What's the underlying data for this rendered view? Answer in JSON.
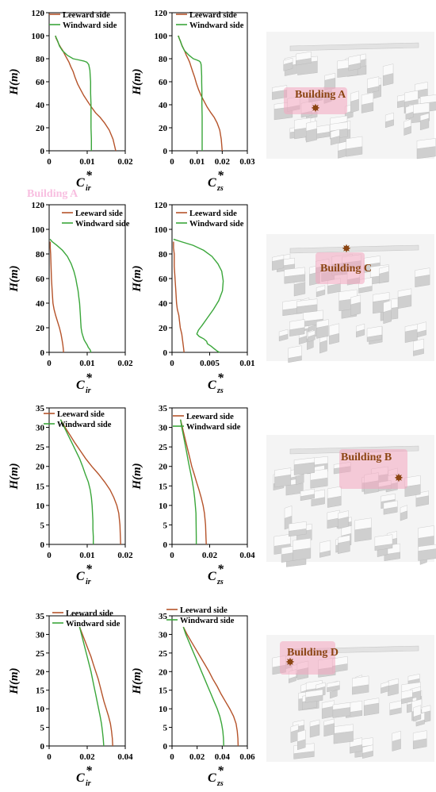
{
  "colors": {
    "leeward": "#b5532a",
    "windward": "#3aa63a",
    "star": "#8b4513",
    "building_label": "#8b4513",
    "highlight": "#f4a6c0"
  },
  "legend": {
    "leeward": "Leeward  side",
    "windward": "Windward  side"
  },
  "chart_data": [
    {
      "type": "line",
      "row": 0,
      "col": 0,
      "ylabel": "H(m)",
      "xlabel": "C",
      "xlabel_sub": "ir",
      "ylim": [
        0,
        120
      ],
      "yticks": [
        0,
        20,
        40,
        60,
        80,
        100,
        120
      ],
      "xlim": [
        0,
        0.02
      ],
      "xticks": [
        "0",
        "0.01",
        "0.02"
      ],
      "xtickvals": [
        0,
        0.01,
        0.02
      ],
      "series": [
        {
          "name": "Leeward  side",
          "x": [
            0.0017,
            0.0018,
            0.0021,
            0.0025,
            0.003,
            0.0036,
            0.0042,
            0.0047,
            0.0052,
            0.0057,
            0.0063,
            0.0068,
            0.0075,
            0.0083,
            0.0091,
            0.0101,
            0.0111,
            0.0122,
            0.0134,
            0.0146,
            0.0158,
            0.0168,
            0.0175
          ],
          "y": [
            100,
            98,
            96,
            93,
            90,
            87,
            83,
            80,
            77,
            73,
            69,
            64,
            58,
            53,
            48,
            43,
            38,
            33,
            29,
            24,
            18,
            10,
            0
          ]
        },
        {
          "name": "Windward  side",
          "x": [
            0.0016,
            0.0019,
            0.0023,
            0.0027,
            0.0035,
            0.0048,
            0.0063,
            0.0078,
            0.0091,
            0.0099,
            0.0104,
            0.0107,
            0.0108,
            0.0109,
            0.0109,
            0.011,
            0.011,
            0.011,
            0.0111,
            0.0111
          ],
          "y": [
            100,
            98,
            95,
            91,
            87,
            83,
            80,
            79,
            78,
            77,
            75,
            70,
            65,
            60,
            50,
            40,
            30,
            20,
            10,
            0
          ]
        }
      ]
    },
    {
      "type": "line",
      "row": 0,
      "col": 1,
      "ylabel": "H(m)",
      "xlabel": "C",
      "xlabel_sub": "zs",
      "ylim": [
        0,
        120
      ],
      "yticks": [
        0,
        20,
        40,
        60,
        80,
        100,
        120
      ],
      "xlim": [
        0,
        0.03
      ],
      "xticks": [
        "0",
        "0.01",
        "0.02",
        "0.03"
      ],
      "xtickvals": [
        0,
        0.01,
        0.02,
        0.03
      ],
      "series": [
        {
          "name": "Leeward  side",
          "x": [
            0.0026,
            0.0028,
            0.0032,
            0.0037,
            0.0043,
            0.005,
            0.0057,
            0.0064,
            0.007,
            0.0076,
            0.0082,
            0.009,
            0.0098,
            0.0106,
            0.0116,
            0.0128,
            0.014,
            0.0155,
            0.0168,
            0.018,
            0.019,
            0.0196,
            0.02
          ],
          "y": [
            100,
            98,
            96,
            93,
            90,
            87,
            83,
            80,
            77,
            73,
            69,
            64,
            58,
            53,
            48,
            43,
            38,
            33,
            29,
            24,
            18,
            10,
            0
          ]
        },
        {
          "name": "Windward  side",
          "x": [
            0.0024,
            0.0028,
            0.0034,
            0.004,
            0.005,
            0.0068,
            0.0085,
            0.0098,
            0.0108,
            0.0113,
            0.0116,
            0.0117,
            0.0118,
            0.0118,
            0.0119,
            0.0119,
            0.012,
            0.012,
            0.012,
            0.012
          ],
          "y": [
            100,
            98,
            95,
            91,
            87,
            83,
            80,
            79,
            78,
            77,
            75,
            70,
            65,
            60,
            50,
            40,
            30,
            20,
            10,
            0
          ]
        }
      ]
    },
    {
      "type": "line",
      "row": 1,
      "col": 0,
      "ylabel": "H(m)",
      "xlabel": "C",
      "xlabel_sub": "ir",
      "ylim": [
        0,
        120
      ],
      "yticks": [
        0,
        20,
        40,
        60,
        80,
        100,
        120
      ],
      "xlim": [
        0,
        0.02
      ],
      "xticks": [
        "0",
        "0.01",
        "0.02"
      ],
      "xtickvals": [
        0,
        0.01,
        0.02
      ],
      "series": [
        {
          "name": "Leeward  side",
          "x": [
            0.0003,
            0.0003,
            0.0004,
            0.0005,
            0.0006,
            0.0008,
            0.001,
            0.0013,
            0.0017,
            0.0022,
            0.0027,
            0.0031,
            0.0034,
            0.0036,
            0.0037,
            0.0038
          ],
          "y": [
            90,
            85,
            80,
            70,
            60,
            50,
            40,
            35,
            30,
            25,
            20,
            15,
            10,
            6,
            3,
            0
          ]
        },
        {
          "name": "Windward  side",
          "x": [
            0.0002,
            0.0008,
            0.002,
            0.0035,
            0.0048,
            0.0058,
            0.0065,
            0.007,
            0.0073,
            0.0076,
            0.0078,
            0.008,
            0.0081,
            0.0082,
            0.0083,
            0.0084,
            0.0086,
            0.0088,
            0.009,
            0.0092,
            0.0096,
            0.01,
            0.0103,
            0.0108,
            0.011
          ],
          "y": [
            92,
            90,
            87,
            83,
            78,
            72,
            66,
            60,
            55,
            50,
            45,
            40,
            35,
            30,
            25,
            20,
            16,
            14,
            12,
            10,
            8,
            6,
            4,
            2,
            0
          ]
        }
      ]
    },
    {
      "type": "line",
      "row": 1,
      "col": 1,
      "ylabel": "H(m)",
      "xlabel": "C",
      "xlabel_sub": "zs",
      "ylim": [
        0,
        120
      ],
      "yticks": [
        0,
        20,
        40,
        60,
        80,
        100,
        120
      ],
      "xlim": [
        0,
        0.01
      ],
      "xticks": [
        "0",
        "0.005",
        "0.01"
      ],
      "xtickvals": [
        0,
        0.005,
        0.01
      ],
      "series": [
        {
          "name": "Leeward  side",
          "x": [
            0.0002,
            0.0002,
            0.0003,
            0.0003,
            0.0004,
            0.0005,
            0.0006,
            0.0007,
            0.0009,
            0.0011,
            0.0013,
            0.0014,
            0.0015,
            0.0016
          ],
          "y": [
            90,
            85,
            80,
            70,
            60,
            50,
            40,
            35,
            30,
            20,
            15,
            10,
            5,
            0
          ]
        },
        {
          "name": "Windward  side",
          "x": [
            0.0002,
            0.0012,
            0.0028,
            0.0042,
            0.0053,
            0.0061,
            0.0066,
            0.0068,
            0.0067,
            0.0062,
            0.0055,
            0.0047,
            0.004,
            0.0035,
            0.0033,
            0.0036,
            0.0042,
            0.0046,
            0.0047,
            0.0052,
            0.0056,
            0.006,
            0.0063
          ],
          "y": [
            92,
            90,
            87,
            83,
            78,
            72,
            66,
            58,
            50,
            42,
            35,
            28,
            22,
            18,
            15,
            13,
            11,
            9,
            7,
            5,
            3,
            1,
            0
          ]
        }
      ]
    },
    {
      "type": "line",
      "row": 2,
      "col": 0,
      "ylabel": "H(m)",
      "xlabel": "C",
      "xlabel_sub": "ir",
      "ylim": [
        0,
        35
      ],
      "yticks": [
        0,
        5,
        10,
        15,
        20,
        25,
        30,
        35
      ],
      "xlim": [
        0,
        0.02
      ],
      "xticks": [
        "0",
        "0.01",
        "0.02"
      ],
      "xtickvals": [
        0,
        0.01,
        0.02
      ],
      "series": [
        {
          "name": "Leeward  side",
          "x": [
            0.003,
            0.0042,
            0.0055,
            0.0068,
            0.0082,
            0.0096,
            0.0112,
            0.013,
            0.0146,
            0.016,
            0.017,
            0.0178,
            0.0183,
            0.0186,
            0.0188
          ],
          "y": [
            32,
            30,
            28,
            26,
            24,
            22,
            20,
            18,
            16,
            14,
            12,
            10,
            8,
            5,
            0
          ]
        },
        {
          "name": "Windward  side",
          "x": [
            0.003,
            0.004,
            0.005,
            0.006,
            0.007,
            0.008,
            0.0088,
            0.0095,
            0.0103,
            0.0108,
            0.0111,
            0.0113,
            0.0114,
            0.0115,
            0.0115,
            0.0116,
            0.0116
          ],
          "y": [
            32,
            30,
            28,
            26,
            24,
            22,
            20,
            18,
            16,
            14,
            12,
            10,
            8,
            6,
            4,
            2,
            0
          ]
        }
      ]
    },
    {
      "type": "line",
      "row": 2,
      "col": 1,
      "ylabel": "H(m)",
      "xlabel": "C",
      "xlabel_sub": "zs",
      "ylim": [
        0,
        35
      ],
      "yticks": [
        0,
        5,
        10,
        15,
        20,
        25,
        30,
        35
      ],
      "xlim": [
        0,
        0.04
      ],
      "xticks": [
        "0",
        "0.02",
        "0.04"
      ],
      "xtickvals": [
        0,
        0.02,
        0.04
      ],
      "series": [
        {
          "name": "Leeward  side",
          "x": [
            0.0045,
            0.0055,
            0.0065,
            0.0075,
            0.0085,
            0.0095,
            0.0105,
            0.0118,
            0.013,
            0.0143,
            0.0155,
            0.0165,
            0.0172,
            0.0178,
            0.018,
            0.0182
          ],
          "y": [
            32,
            30,
            28,
            26,
            24,
            22,
            20,
            18,
            16,
            14,
            12,
            10,
            8,
            5,
            2,
            0
          ]
        },
        {
          "name": "Windward  side",
          "x": [
            0.0045,
            0.0052,
            0.006,
            0.0068,
            0.0076,
            0.0084,
            0.0092,
            0.01,
            0.0108,
            0.0115,
            0.012,
            0.0124,
            0.0127,
            0.0128,
            0.0129,
            0.0129
          ],
          "y": [
            32,
            30,
            28,
            26,
            24,
            22,
            20,
            18,
            16,
            14,
            12,
            10,
            8,
            5,
            2,
            0
          ]
        }
      ]
    },
    {
      "type": "line",
      "row": 3,
      "col": 0,
      "ylabel": "H(m)",
      "xlabel": "C",
      "xlabel_sub": "ir",
      "ylim": [
        0,
        35
      ],
      "yticks": [
        0,
        5,
        10,
        15,
        20,
        25,
        30,
        35
      ],
      "xlim": [
        0,
        0.04
      ],
      "xticks": [
        "0",
        "0.02",
        "0.04"
      ],
      "xtickvals": [
        0,
        0.02,
        0.04
      ],
      "series": [
        {
          "name": "Leeward  side",
          "x": [
            0.016,
            0.0175,
            0.019,
            0.0205,
            0.022,
            0.0232,
            0.0245,
            0.0258,
            0.0268,
            0.0278,
            0.0288,
            0.03,
            0.0312,
            0.0322,
            0.0328,
            0.0332,
            0.0334
          ],
          "y": [
            32,
            30,
            28,
            26,
            24,
            22,
            20,
            18,
            16,
            14,
            12,
            10,
            8,
            6,
            4,
            2,
            0
          ]
        },
        {
          "name": "Windward  side",
          "x": [
            0.016,
            0.017,
            0.018,
            0.019,
            0.02,
            0.021,
            0.022,
            0.0228,
            0.0236,
            0.0244,
            0.0252,
            0.026,
            0.0268,
            0.0275,
            0.028,
            0.0284,
            0.0287
          ],
          "y": [
            32,
            30,
            28,
            26,
            24,
            22,
            20,
            18,
            16,
            14,
            12,
            10,
            8,
            6,
            4,
            2,
            0
          ]
        }
      ]
    },
    {
      "type": "line",
      "row": 3,
      "col": 1,
      "ylabel": "H(m)",
      "xlabel": "C",
      "xlabel_sub": "zs",
      "ylim": [
        0,
        35
      ],
      "yticks": [
        0,
        5,
        10,
        15,
        20,
        25,
        30,
        35
      ],
      "xlim": [
        0,
        0.06
      ],
      "xticks": [
        "0",
        "0.02",
        "0.04",
        "0.06"
      ],
      "xtickvals": [
        0,
        0.02,
        0.04,
        0.06
      ],
      "series": [
        {
          "name": "Leeward  side",
          "x": [
            0.009,
            0.012,
            0.0155,
            0.019,
            0.0225,
            0.026,
            0.0295,
            0.0325,
            0.036,
            0.039,
            0.0425,
            0.046,
            0.049,
            0.051,
            0.052,
            0.0525,
            0.0527
          ],
          "y": [
            32,
            30,
            28,
            26,
            24,
            22,
            20,
            18,
            16,
            14,
            12,
            10,
            8,
            6,
            4,
            2,
            0
          ]
        },
        {
          "name": "Windward  side",
          "x": [
            0.009,
            0.011,
            0.0135,
            0.016,
            0.0185,
            0.021,
            0.0235,
            0.026,
            0.0285,
            0.031,
            0.0335,
            0.036,
            0.038,
            0.0395,
            0.0405,
            0.041,
            0.0412
          ],
          "y": [
            32,
            30,
            28,
            26,
            24,
            22,
            20,
            18,
            16,
            14,
            12,
            10,
            8,
            6,
            4,
            2,
            0
          ]
        }
      ]
    }
  ],
  "building_panels": [
    {
      "label": "Building A"
    },
    {
      "label": "Building C"
    },
    {
      "label": "Building B"
    },
    {
      "label": "Building D"
    }
  ],
  "watermark_fragment": "Building A"
}
